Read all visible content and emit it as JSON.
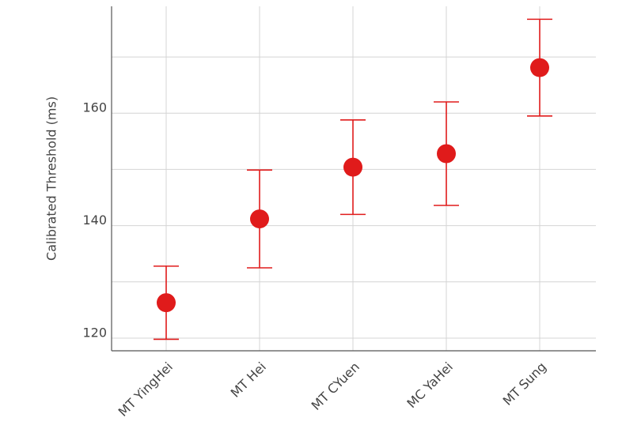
{
  "chart_data": {
    "type": "errorbar",
    "y_label": "Calibrated Threshold (ms)",
    "categories": [
      "MT YingHei",
      "MT Hei",
      "MT CYuen",
      "MC YaHei",
      "MT Sung"
    ],
    "values": [
      126.3,
      141.2,
      150.4,
      152.8,
      168.1
    ],
    "errors": [
      6.5,
      8.7,
      8.4,
      9.2,
      8.6
    ],
    "color": "#e01b1b",
    "ylim": [
      117.75,
      179
    ],
    "yticks": [
      120,
      140,
      160
    ],
    "yminor": [
      130,
      150,
      170
    ],
    "grid": true
  }
}
